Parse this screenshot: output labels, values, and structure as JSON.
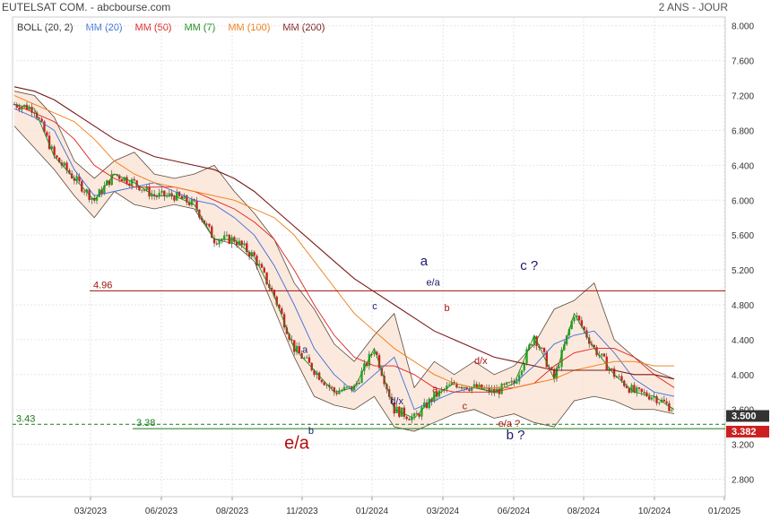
{
  "header": {
    "title": "EUTELSAT COM. - abcbourse.com",
    "period": "2 ANS - JOUR"
  },
  "legend": [
    {
      "label": "BOLL (20, 2)",
      "color": "#333333"
    },
    {
      "label": "MM (20)",
      "color": "#3a6fd8"
    },
    {
      "label": "MM (50)",
      "color": "#e02020"
    },
    {
      "label": "MM (7)",
      "color": "#1a8a1a"
    },
    {
      "label": "MM (100)",
      "color": "#f07a10"
    },
    {
      "label": "MM (200)",
      "color": "#7a1a1a"
    }
  ],
  "chart_data": {
    "type": "line",
    "ylim": [
      2.6,
      8.1
    ],
    "y_ticks": [
      "8.000",
      "7.600",
      "7.200",
      "6.800",
      "6.400",
      "6.000",
      "5.600",
      "5.200",
      "4.800",
      "4.400",
      "4.000",
      "3.600",
      "3.200",
      "2.800"
    ],
    "x_ticks": [
      "03/2023",
      "06/2023",
      "08/2023",
      "11/2023",
      "01/2024",
      "03/2024",
      "06/2024",
      "08/2024",
      "10/2024",
      "01/2025"
    ],
    "series": [
      {
        "name": "BOLL (20, 2)",
        "color": "#333333",
        "upper": [
          7.25,
          7.2,
          6.95,
          6.45,
          6.25,
          6.45,
          6.55,
          6.3,
          6.25,
          6.3,
          6.4,
          6.1,
          5.85,
          5.55,
          5.05,
          4.75,
          4.35,
          4.15,
          4.45,
          4.7,
          3.85,
          4.15,
          4.0,
          4.15,
          4.0,
          4.1,
          4.35,
          4.75,
          4.85,
          5.05,
          4.4,
          4.2,
          4.05,
          3.95
        ],
        "lower": [
          6.85,
          6.6,
          6.35,
          6.05,
          5.8,
          6.1,
          5.95,
          5.9,
          5.95,
          5.9,
          5.55,
          5.5,
          5.3,
          4.75,
          4.2,
          3.75,
          3.65,
          3.6,
          3.75,
          3.4,
          3.35,
          3.45,
          3.55,
          3.6,
          3.5,
          3.55,
          3.45,
          3.4,
          3.7,
          3.75,
          3.7,
          3.6,
          3.6,
          3.55
        ]
      },
      {
        "name": "MM (20)",
        "color": "#3a6fd8",
        "values": [
          7.05,
          6.95,
          6.8,
          6.35,
          6.05,
          6.1,
          6.15,
          6.2,
          6.1,
          6.0,
          5.95,
          5.8,
          5.6,
          5.25,
          4.8,
          4.3,
          4.0,
          3.8,
          4.0,
          4.2,
          3.6,
          3.7,
          3.8,
          3.85,
          3.8,
          3.9,
          4.1,
          4.35,
          4.45,
          4.5,
          4.25,
          3.95,
          3.8,
          3.75
        ]
      },
      {
        "name": "MM (50)",
        "color": "#e02020",
        "values": [
          7.1,
          7.0,
          6.9,
          6.7,
          6.4,
          6.25,
          6.15,
          6.15,
          6.15,
          6.1,
          6.0,
          5.9,
          5.75,
          5.55,
          5.2,
          4.8,
          4.45,
          4.2,
          4.1,
          4.1,
          4.0,
          3.85,
          3.8,
          3.8,
          3.8,
          3.85,
          3.9,
          4.1,
          4.25,
          4.3,
          4.3,
          4.2,
          4.0,
          3.85
        ]
      },
      {
        "name": "MM (7)",
        "color": "#1a8a1a",
        "values": [
          7.1,
          7.05,
          6.5,
          6.25,
          6.0,
          6.3,
          6.2,
          6.05,
          6.05,
          5.95,
          5.55,
          5.55,
          5.35,
          4.9,
          4.3,
          4.05,
          3.8,
          3.85,
          4.3,
          3.6,
          3.5,
          3.75,
          3.9,
          3.85,
          3.8,
          3.9,
          4.45,
          3.95,
          4.7,
          4.3,
          4.0,
          3.8,
          3.75,
          3.6
        ]
      },
      {
        "name": "MM (100)",
        "color": "#f07a10",
        "values": [
          7.2,
          7.1,
          7.0,
          6.9,
          6.7,
          6.45,
          6.3,
          6.2,
          6.15,
          6.1,
          6.05,
          6.0,
          5.9,
          5.8,
          5.6,
          5.3,
          5.0,
          4.7,
          4.5,
          4.3,
          4.15,
          4.0,
          3.9,
          3.85,
          3.85,
          3.85,
          3.9,
          3.95,
          4.05,
          4.1,
          4.15,
          4.15,
          4.1,
          4.1
        ]
      },
      {
        "name": "MM (200)",
        "color": "#7a1a1a",
        "values": [
          7.3,
          7.25,
          7.15,
          7.0,
          6.85,
          6.7,
          6.6,
          6.5,
          6.45,
          6.4,
          6.35,
          6.25,
          6.1,
          5.9,
          5.7,
          5.5,
          5.3,
          5.1,
          4.95,
          4.8,
          4.65,
          4.5,
          4.4,
          4.3,
          4.2,
          4.15,
          4.1,
          4.05,
          4.05,
          4.05,
          4.05,
          4.0,
          4.0,
          3.95
        ]
      }
    ],
    "price_levels": [
      {
        "label": "4.96",
        "value": 4.96,
        "color": "#a01010"
      },
      {
        "label": "3.43",
        "value": 3.43,
        "color": "#1a7a1a"
      },
      {
        "label": "3.38",
        "value": 3.38,
        "color": "#1a7a1a"
      }
    ],
    "value_badges": [
      {
        "label": "3.500",
        "value": 3.5,
        "bg": "#333333",
        "fg": "#ffffff"
      },
      {
        "label": "3.382",
        "value": 3.382,
        "bg": "#cc2020",
        "fg": "#ffffff"
      }
    ],
    "annotations": [
      {
        "text": "a",
        "color": "#1a1a6a",
        "x": 14.4,
        "y": 4.25,
        "size": "small"
      },
      {
        "text": "b",
        "color": "#1a1a6a",
        "x": 14.7,
        "y": 3.32,
        "size": "small"
      },
      {
        "text": "e/a",
        "color": "#b01010",
        "x": 13.5,
        "y": 3.15,
        "size": "large"
      },
      {
        "text": "c",
        "color": "#1a1a6a",
        "x": 17.9,
        "y": 4.75,
        "size": "small"
      },
      {
        "text": "d/x",
        "color": "#1a1a6a",
        "x": 18.8,
        "y": 3.66,
        "size": "small"
      },
      {
        "text": "a",
        "color": "#1a1a6a",
        "x": 20.3,
        "y": 5.25,
        "size": "medium"
      },
      {
        "text": "e/a",
        "color": "#1a1a6a",
        "x": 20.6,
        "y": 5.02,
        "size": "small"
      },
      {
        "text": "b",
        "color": "#b01010",
        "x": 21.5,
        "y": 4.73,
        "size": "small"
      },
      {
        "text": "a",
        "color": "#b01010",
        "x": 20.9,
        "y": 3.8,
        "size": "small"
      },
      {
        "text": "c",
        "color": "#b01010",
        "x": 22.4,
        "y": 3.6,
        "size": "small"
      },
      {
        "text": "d/x",
        "color": "#b01010",
        "x": 23.0,
        "y": 4.12,
        "size": "small"
      },
      {
        "text": "c ?",
        "color": "#1a1a6a",
        "x": 25.3,
        "y": 5.2,
        "size": "medium"
      },
      {
        "text": "e/a ?",
        "color": "#b01010",
        "x": 24.2,
        "y": 3.4,
        "size": "small"
      },
      {
        "text": "b ?",
        "color": "#1a1a6a",
        "x": 24.6,
        "y": 3.26,
        "size": "medium"
      }
    ]
  }
}
